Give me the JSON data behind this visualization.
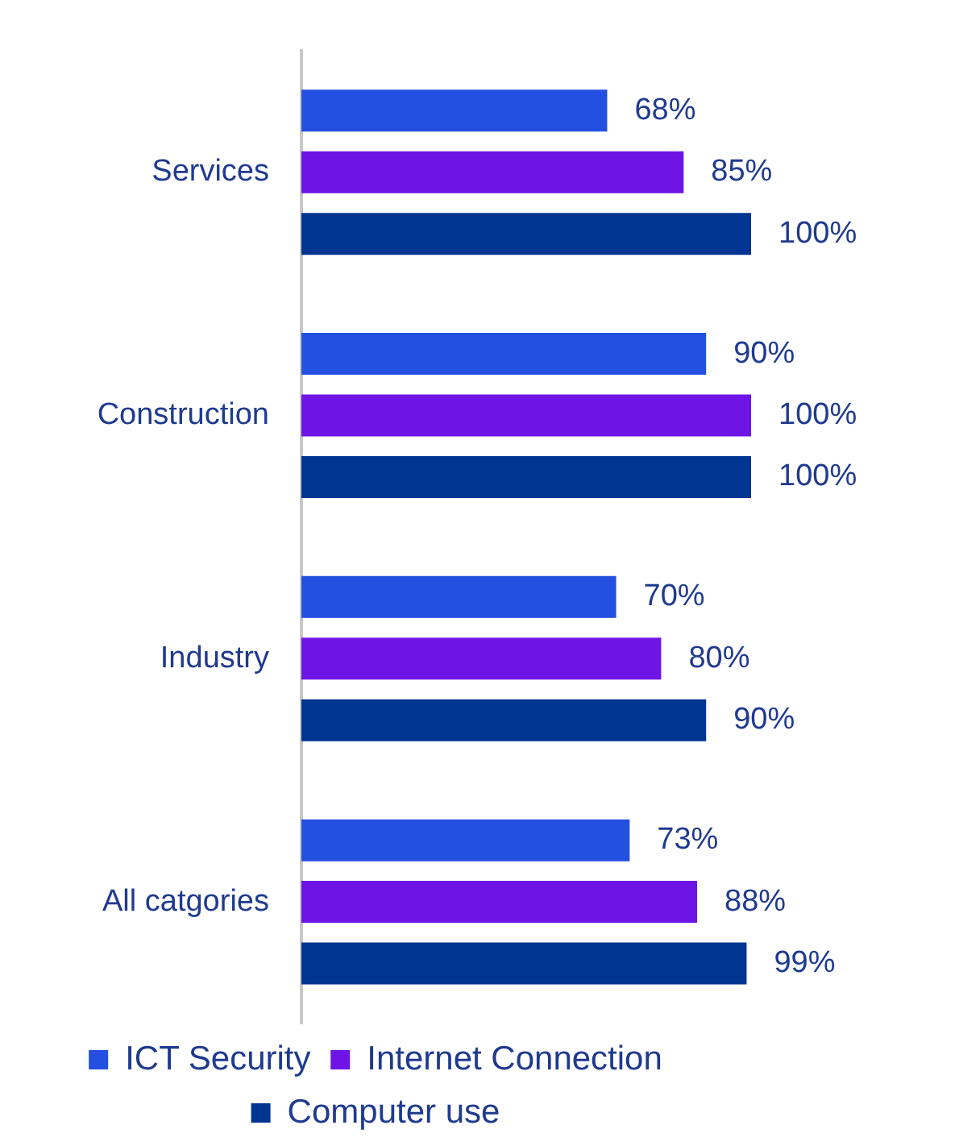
{
  "chart_data": {
    "type": "bar",
    "orientation": "horizontal",
    "categories": [
      "Services",
      "Construction",
      "Industry",
      "All catgories"
    ],
    "series": [
      {
        "name": "ICT Security",
        "color": "#2350e0",
        "values": [
          68,
          90,
          70,
          73
        ],
        "value_labels": [
          "68%",
          "90%",
          "70%",
          "73%"
        ]
      },
      {
        "name": "Internet Connection",
        "color": "#6e14e6",
        "values": [
          85,
          100,
          80,
          88
        ],
        "value_labels": [
          "85%",
          "100%",
          "80%",
          "88%"
        ]
      },
      {
        "name": "Computer use",
        "color": "#003591",
        "values": [
          100,
          100,
          90,
          99
        ],
        "value_labels": [
          "100%",
          "100%",
          "90%",
          "99%"
        ]
      }
    ],
    "xlim": [
      0,
      100
    ],
    "tick_labels": "y",
    "grid": false,
    "legend": "bottom"
  }
}
